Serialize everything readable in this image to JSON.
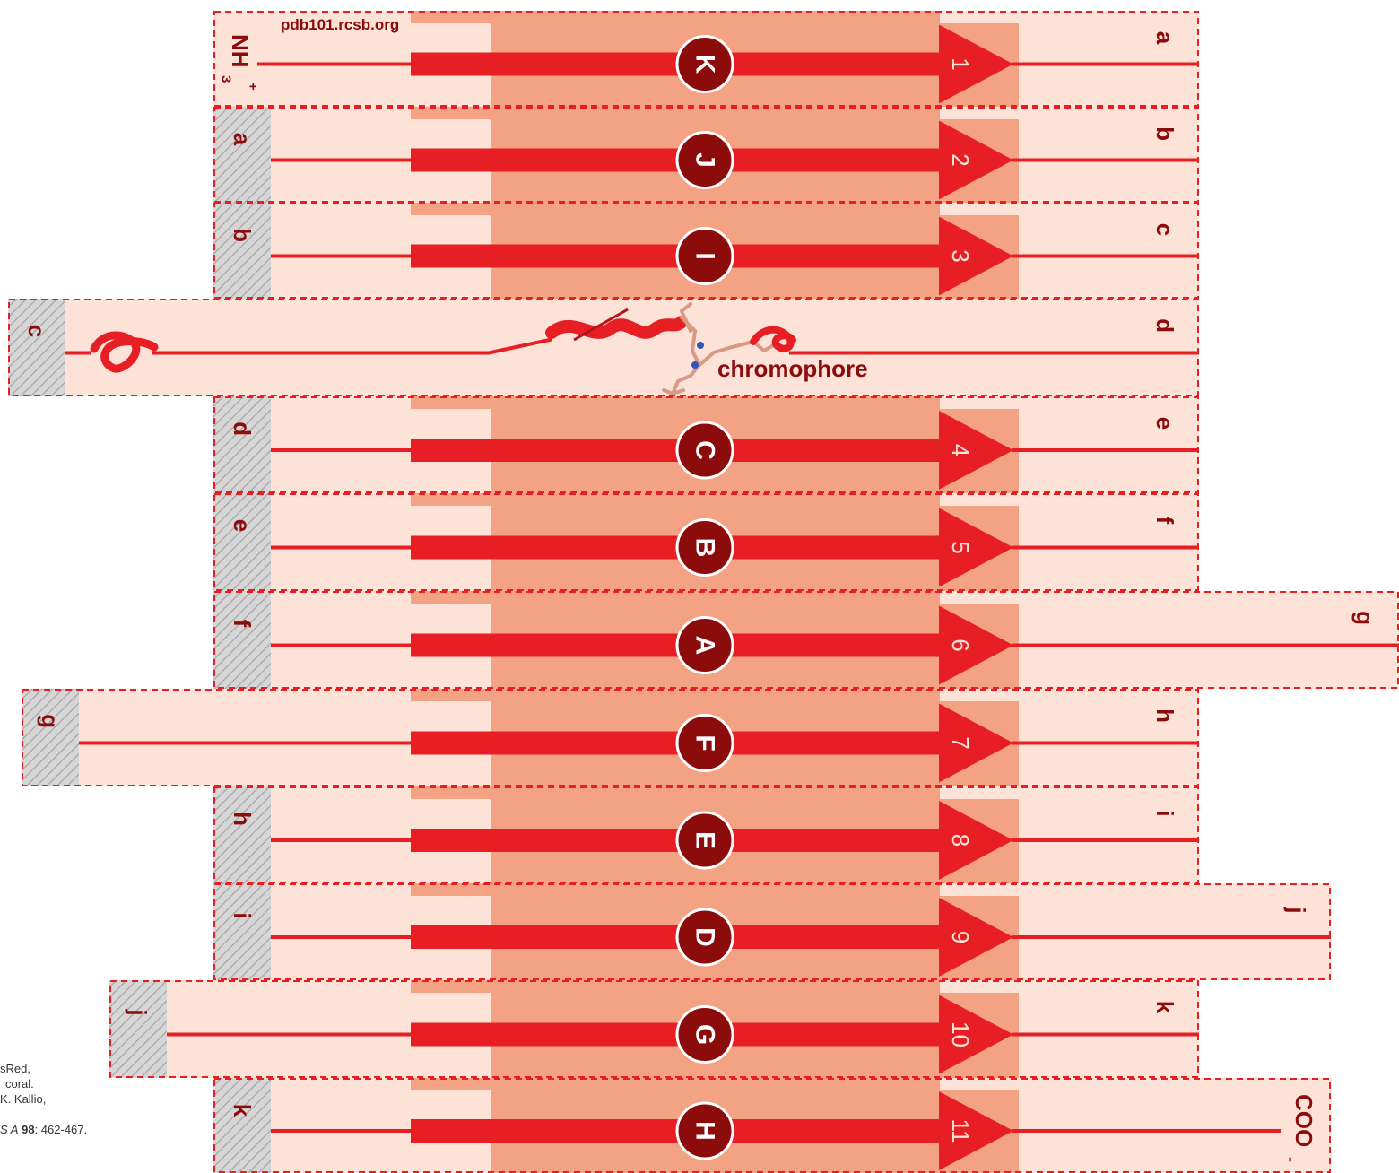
{
  "header": {
    "site": "pdb101.rcsb.org",
    "n_terminus_main": "NH",
    "n_terminus_sub": "3",
    "n_terminus_sup": "+",
    "c_terminus": "COO",
    "c_terminus_sup": "-"
  },
  "chromophore_label": "chromophore",
  "strips": [
    {
      "left_tab": "",
      "right_tab": "a",
      "strand": "K",
      "number": "1"
    },
    {
      "left_tab": "a",
      "right_tab": "b",
      "strand": "J",
      "number": "2"
    },
    {
      "left_tab": "b",
      "right_tab": "c",
      "strand": "I",
      "number": "3"
    },
    {
      "left_tab": "c",
      "right_tab": "d",
      "strand": "",
      "number": ""
    },
    {
      "left_tab": "d",
      "right_tab": "e",
      "strand": "C",
      "number": "4"
    },
    {
      "left_tab": "e",
      "right_tab": "f",
      "strand": "B",
      "number": "5"
    },
    {
      "left_tab": "f",
      "right_tab": "g",
      "strand": "A",
      "number": "6"
    },
    {
      "left_tab": "g",
      "right_tab": "h",
      "strand": "F",
      "number": "7"
    },
    {
      "left_tab": "h",
      "right_tab": "i",
      "strand": "E",
      "number": "8"
    },
    {
      "left_tab": "i",
      "right_tab": "j",
      "strand": "D",
      "number": "9"
    },
    {
      "left_tab": "j",
      "right_tab": "k",
      "strand": "G",
      "number": "10"
    },
    {
      "left_tab": "k",
      "right_tab": "",
      "strand": "H",
      "number": "11"
    }
  ],
  "credit": {
    "line1": "sRed,",
    "line2": "coral.",
    "line3": "K. Kallio,",
    "line4_italic": "S A",
    "line4_bold": "98",
    "line4_rest": ": 462-467."
  },
  "colors": {
    "page_bg": "#ffffff",
    "strip_light": "#fde2d8",
    "strip_dark": "#f4a284",
    "strand_red": "#e81e25",
    "label_dark_red": "#8c0b0b",
    "dashed_border": "#e81e25",
    "tab_hatch_gray": "#cfcfcf"
  }
}
